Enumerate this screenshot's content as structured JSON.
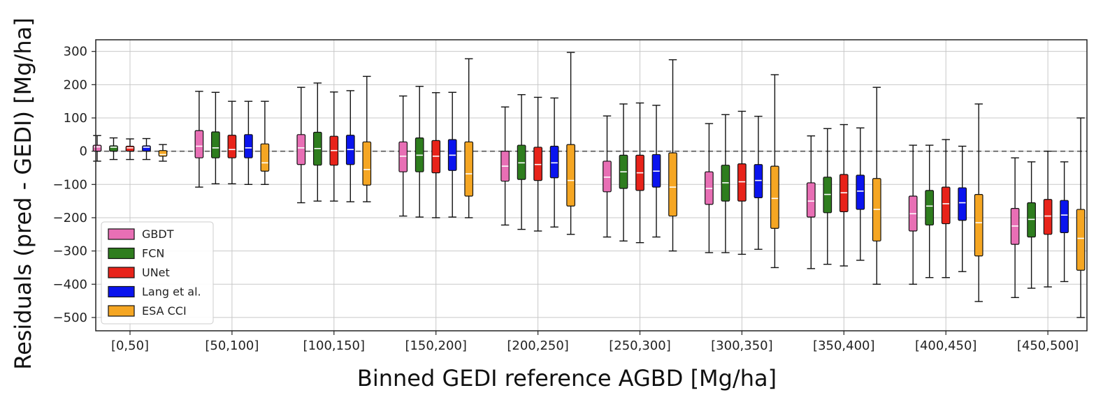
{
  "chart_data": {
    "type": "box",
    "xlabel": "Binned GEDI reference AGBD [Mg/ha]",
    "ylabel": "Residuals (pred - GEDI) [Mg/ha]",
    "ylim": [
      -540,
      335
    ],
    "yticks": [
      300,
      200,
      100,
      0,
      -100,
      -200,
      -300,
      -400,
      -500
    ],
    "grid": true,
    "zero_line": "dashed",
    "legend_position": "lower-left",
    "categories": [
      "[0,50]",
      "[50,100]",
      "[100,150]",
      "[150,200]",
      "[200,250]",
      "[250,300]",
      "[300,350]",
      "[350,400]",
      "[400,450]",
      "[450,500]"
    ],
    "series": [
      {
        "name": "GBDT",
        "color": "#e86fb5",
        "boxes": [
          {
            "whislo": -30,
            "q1": 0,
            "med": 13,
            "q3": 18,
            "whishi": 47
          },
          {
            "whislo": -108,
            "q1": -20,
            "med": 15,
            "q3": 62,
            "whishi": 180
          },
          {
            "whislo": -155,
            "q1": -40,
            "med": 10,
            "q3": 50,
            "whishi": 192
          },
          {
            "whislo": -195,
            "q1": -62,
            "med": -15,
            "q3": 28,
            "whishi": 166
          },
          {
            "whislo": -222,
            "q1": -90,
            "med": -45,
            "q3": 0,
            "whishi": 133
          },
          {
            "whislo": -258,
            "q1": -122,
            "med": -78,
            "q3": -30,
            "whishi": 106
          },
          {
            "whislo": -305,
            "q1": -160,
            "med": -112,
            "q3": -62,
            "whishi": 83
          },
          {
            "whislo": -353,
            "q1": -198,
            "med": -150,
            "q3": -95,
            "whishi": 46
          },
          {
            "whislo": -400,
            "q1": -240,
            "med": -188,
            "q3": -135,
            "whishi": 18
          },
          {
            "whislo": -440,
            "q1": -280,
            "med": -225,
            "q3": -172,
            "whishi": -20
          }
        ]
      },
      {
        "name": "FCN",
        "color": "#2e7d1e",
        "boxes": [
          {
            "whislo": -25,
            "q1": 0,
            "med": 12,
            "q3": 16,
            "whishi": 40
          },
          {
            "whislo": -98,
            "q1": -20,
            "med": 10,
            "q3": 58,
            "whishi": 177
          },
          {
            "whislo": -150,
            "q1": -42,
            "med": 8,
            "q3": 57,
            "whishi": 205
          },
          {
            "whislo": -198,
            "q1": -62,
            "med": -12,
            "q3": 40,
            "whishi": 195
          },
          {
            "whislo": -235,
            "q1": -85,
            "med": -35,
            "q3": 18,
            "whishi": 170
          },
          {
            "whislo": -270,
            "q1": -112,
            "med": -62,
            "q3": -12,
            "whishi": 142
          },
          {
            "whislo": -305,
            "q1": -150,
            "med": -95,
            "q3": -42,
            "whishi": 110
          },
          {
            "whislo": -340,
            "q1": -185,
            "med": -130,
            "q3": -78,
            "whishi": 68
          },
          {
            "whislo": -380,
            "q1": -222,
            "med": -165,
            "q3": -118,
            "whishi": 18
          },
          {
            "whislo": -412,
            "q1": -258,
            "med": -205,
            "q3": -155,
            "whishi": -32
          }
        ]
      },
      {
        "name": "UNet",
        "color": "#e8231a",
        "boxes": [
          {
            "whislo": -25,
            "q1": 0,
            "med": 10,
            "q3": 15,
            "whishi": 37
          },
          {
            "whislo": -98,
            "q1": -20,
            "med": 5,
            "q3": 48,
            "whishi": 150
          },
          {
            "whislo": -150,
            "q1": -42,
            "med": 2,
            "q3": 45,
            "whishi": 178
          },
          {
            "whislo": -200,
            "q1": -65,
            "med": -15,
            "q3": 32,
            "whishi": 176
          },
          {
            "whislo": -240,
            "q1": -88,
            "med": -40,
            "q3": 12,
            "whishi": 162
          },
          {
            "whislo": -275,
            "q1": -118,
            "med": -65,
            "q3": -12,
            "whishi": 145
          },
          {
            "whislo": -310,
            "q1": -150,
            "med": -92,
            "q3": -38,
            "whishi": 120
          },
          {
            "whislo": -345,
            "q1": -182,
            "med": -125,
            "q3": -70,
            "whishi": 80
          },
          {
            "whislo": -380,
            "q1": -218,
            "med": -158,
            "q3": -108,
            "whishi": 35
          },
          {
            "whislo": -408,
            "q1": -250,
            "med": -195,
            "q3": -145,
            "whishi": 0
          }
        ]
      },
      {
        "name": "Lang et al.",
        "color": "#0a14ee",
        "boxes": [
          {
            "whislo": -25,
            "q1": 0,
            "med": 12,
            "q3": 16,
            "whishi": 38
          },
          {
            "whislo": -100,
            "q1": -20,
            "med": 10,
            "q3": 50,
            "whishi": 150
          },
          {
            "whislo": -152,
            "q1": -40,
            "med": 5,
            "q3": 48,
            "whishi": 182
          },
          {
            "whislo": -198,
            "q1": -58,
            "med": -12,
            "q3": 35,
            "whishi": 177
          },
          {
            "whislo": -228,
            "q1": -80,
            "med": -35,
            "q3": 15,
            "whishi": 160
          },
          {
            "whislo": -258,
            "q1": -108,
            "med": -60,
            "q3": -10,
            "whishi": 138
          },
          {
            "whislo": -295,
            "q1": -140,
            "med": -88,
            "q3": -40,
            "whishi": 105
          },
          {
            "whislo": -328,
            "q1": -175,
            "med": -120,
            "q3": -72,
            "whishi": 70
          },
          {
            "whislo": -362,
            "q1": -208,
            "med": -155,
            "q3": -110,
            "whishi": 15
          },
          {
            "whislo": -392,
            "q1": -245,
            "med": -192,
            "q3": -148,
            "whishi": -32
          }
        ]
      },
      {
        "name": "ESA CCI",
        "color": "#f5a623",
        "boxes": [
          {
            "whislo": -30,
            "q1": -15,
            "med": -10,
            "q3": 2,
            "whishi": 20
          },
          {
            "whislo": -100,
            "q1": -60,
            "med": -35,
            "q3": 22,
            "whishi": 150
          },
          {
            "whislo": -152,
            "q1": -102,
            "med": -55,
            "q3": 28,
            "whishi": 225
          },
          {
            "whislo": -200,
            "q1": -135,
            "med": -68,
            "q3": 28,
            "whishi": 278
          },
          {
            "whislo": -250,
            "q1": -165,
            "med": -88,
            "q3": 20,
            "whishi": 297
          },
          {
            "whislo": -300,
            "q1": -195,
            "med": -108,
            "q3": -5,
            "whishi": 275
          },
          {
            "whislo": -350,
            "q1": -232,
            "med": -142,
            "q3": -45,
            "whishi": 230
          },
          {
            "whislo": -400,
            "q1": -270,
            "med": -175,
            "q3": -82,
            "whishi": 192
          },
          {
            "whislo": -452,
            "q1": -315,
            "med": -215,
            "q3": -130,
            "whishi": 142
          },
          {
            "whislo": -500,
            "q1": -358,
            "med": -262,
            "q3": -175,
            "whishi": 100
          }
        ]
      }
    ]
  }
}
